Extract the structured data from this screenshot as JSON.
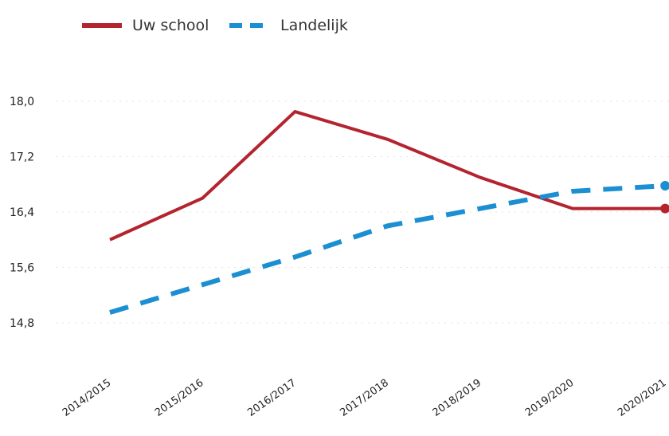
{
  "chart_data": {
    "type": "line",
    "categories": [
      "2014/2015",
      "2015/2016",
      "2016/2017",
      "2017/2018",
      "2018/2019",
      "2019/2020",
      "2020/2021"
    ],
    "series": [
      {
        "name": "Uw school",
        "values": [
          16.0,
          16.6,
          17.85,
          17.45,
          16.9,
          16.45,
          16.45
        ],
        "color": "#b3242f",
        "dashed": false
      },
      {
        "name": "Landelijk",
        "values": [
          14.95,
          15.35,
          15.75,
          16.2,
          16.45,
          16.7,
          16.78
        ],
        "color": "#1b8fd2",
        "dashed": true
      }
    ],
    "yticks": [
      "18,0",
      "17,2",
      "16,4",
      "15,6",
      "14,8"
    ],
    "ytick_values": [
      18.0,
      17.2,
      16.4,
      15.6,
      14.8
    ],
    "ylim": [
      14.8,
      18.0
    ],
    "grid": true,
    "legend_position": "top-left"
  }
}
